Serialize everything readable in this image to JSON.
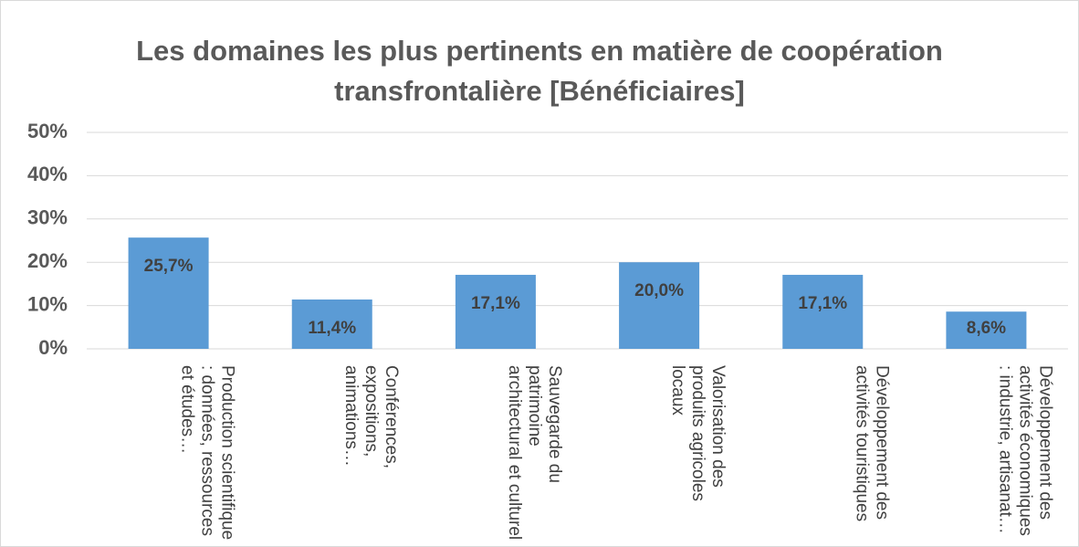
{
  "chart_data": {
    "type": "bar",
    "title": "Les domaines les plus pertinents en matière de coopération transfrontalière [Bénéficiaires]",
    "categories": [
      "Production scientifique : données, ressources et études…",
      "Conférences, expositions, animations…",
      "Sauvegarde du patrimoine architectural et culturel",
      "Valorisation des produits agricoles locaux",
      "Développement des activités touristiques",
      "Développement des activités économiques : industrie, artisanat…"
    ],
    "values": [
      25.7,
      11.4,
      17.1,
      20.0,
      17.1,
      8.6
    ],
    "value_labels": [
      "25,7%",
      "11,4%",
      "17,1%",
      "20,0%",
      "17,1%",
      "8,6%"
    ],
    "color": "#5b9bd5",
    "ylim": [
      0,
      50
    ],
    "yticks": [
      {
        "value": 0,
        "label": "0%"
      },
      {
        "value": 10,
        "label": "10%"
      },
      {
        "value": 20,
        "label": "20%"
      },
      {
        "value": 30,
        "label": "30%"
      },
      {
        "value": 40,
        "label": "40%"
      },
      {
        "value": 50,
        "label": "50%"
      }
    ],
    "grid": true
  }
}
